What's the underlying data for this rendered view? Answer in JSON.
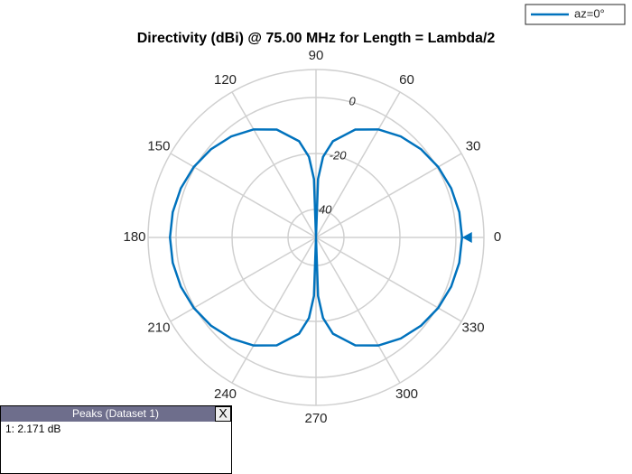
{
  "chart_data": {
    "type": "polar",
    "title": "Directivity (dBi) @ 75.00 MHz for Length = Lambda/2",
    "series": [
      {
        "name": "az=0°",
        "color": "#0072bd",
        "x": [
          0,
          10,
          20,
          30,
          40,
          50,
          60,
          70,
          80,
          85,
          88,
          90,
          92,
          95,
          100,
          110,
          120,
          130,
          140,
          150,
          160,
          170,
          180,
          190,
          200,
          210,
          220,
          230,
          240,
          250,
          260,
          265,
          268,
          270,
          272,
          275,
          280,
          290,
          300,
          310,
          320,
          330,
          340,
          350,
          360
        ],
        "values": [
          2.17,
          1.98,
          1.39,
          0.41,
          -0.99,
          -2.88,
          -5.42,
          -8.99,
          -15.06,
          -21.1,
          -29.1,
          -50,
          -29.1,
          -21.1,
          -15.06,
          -8.99,
          -5.42,
          -2.88,
          -0.99,
          0.41,
          1.39,
          1.98,
          2.17,
          1.98,
          1.39,
          0.41,
          -0.99,
          -2.88,
          -5.42,
          -8.99,
          -15.06,
          -21.1,
          -29.1,
          -50,
          -29.1,
          -21.1,
          -15.06,
          -8.99,
          -5.42,
          -2.88,
          -0.99,
          0.41,
          1.39,
          1.98,
          2.17
        ]
      }
    ],
    "rlim": [
      -50,
      10
    ],
    "rticks": [
      -40,
      -20,
      0
    ],
    "thetaticks": [
      0,
      30,
      60,
      90,
      120,
      150,
      180,
      210,
      240,
      270,
      300,
      330
    ],
    "grid": true,
    "legend": "top-right",
    "peak": {
      "angle": 0,
      "value": 2.171,
      "panel_title": "Peaks (Dataset 1)",
      "close": "X",
      "value_label": "1: 2.171 dB"
    }
  }
}
